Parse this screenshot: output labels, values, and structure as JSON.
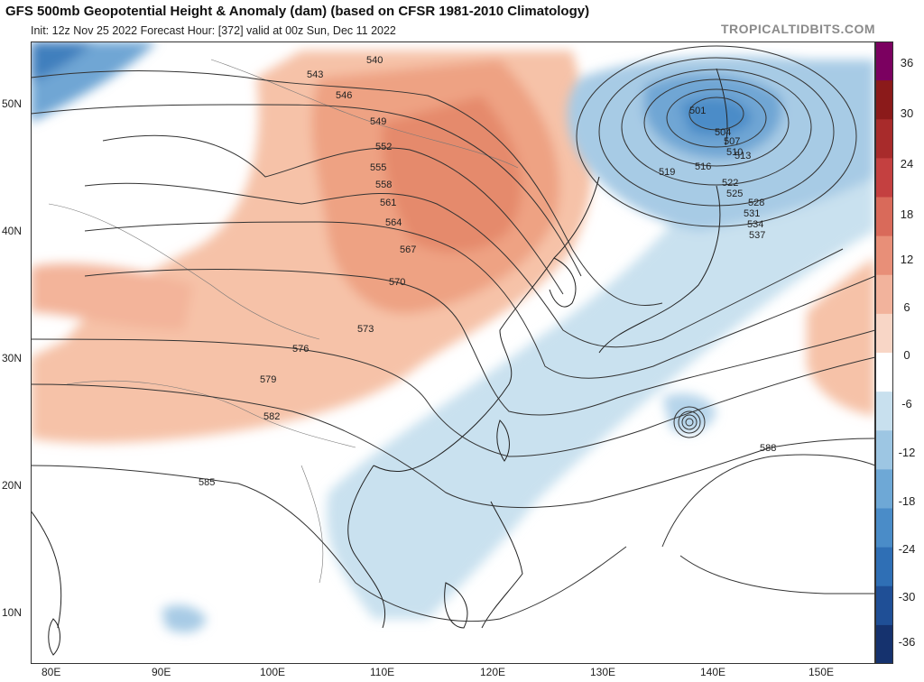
{
  "header": {
    "title": "GFS 500mb Geopotential Height & Anomaly (dam) (based on CFSR 1981-2010 Climatology)",
    "subtitle": "Init: 12z Nov 25 2022   Forecast Hour: [372]   valid at 00z Sun, Dec 11 2022",
    "watermark": "TROPICALTIDBITS.COM"
  },
  "axes": {
    "longitudes": [
      "80E",
      "90E",
      "100E",
      "110E",
      "120E",
      "130E",
      "140E",
      "150E"
    ],
    "latitudes": [
      "50N",
      "40N",
      "30N",
      "20N",
      "10N"
    ]
  },
  "colorbar": {
    "labels": [
      "36",
      "30",
      "24",
      "18",
      "12",
      "6",
      "0",
      "-6",
      "-12",
      "-18",
      "-24",
      "-30",
      "-36"
    ],
    "colors": [
      "#7b0060",
      "#8b1a1a",
      "#a82b2b",
      "#c44040",
      "#d96a5a",
      "#e88f78",
      "#f2b39c",
      "#f8d6c6",
      "#ffffff",
      "#c8e0ee",
      "#9dc6e3",
      "#6ea8d6",
      "#4a8cc8",
      "#2f6fb5",
      "#1f4f96",
      "#15326e"
    ]
  },
  "contour_labels": [
    "540",
    "543",
    "546",
    "549",
    "552",
    "555",
    "558",
    "561",
    "564",
    "567",
    "570",
    "573",
    "576",
    "579",
    "582",
    "585",
    "588",
    "501",
    "504",
    "507",
    "510",
    "513",
    "516",
    "519",
    "522",
    "525",
    "528",
    "531",
    "534",
    "537"
  ]
}
